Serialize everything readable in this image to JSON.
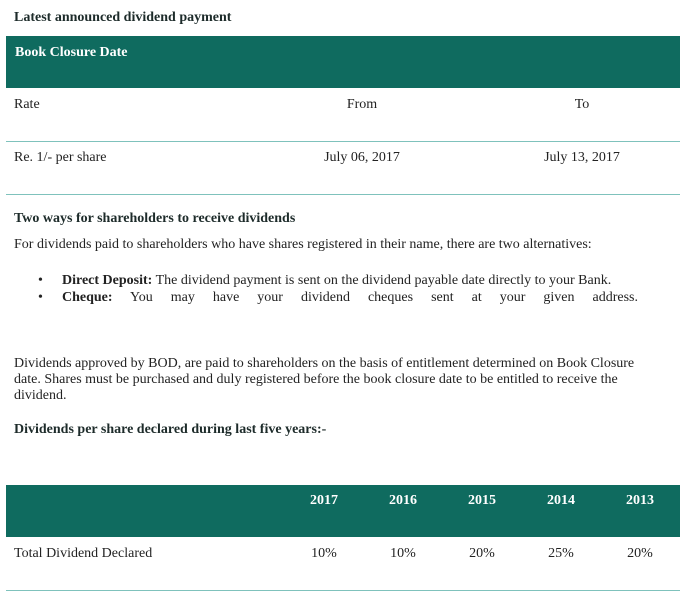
{
  "latest": {
    "title": "Latest announced dividend payment"
  },
  "book_closure": {
    "header": "Book Closure Date",
    "columns": [
      "Rate",
      "From",
      "To"
    ],
    "row": [
      "Re. 1/- per share",
      "July 06, 2017",
      "July 13, 2017"
    ]
  },
  "ways": {
    "heading": "Two ways for shareholders to receive dividends",
    "intro": "For dividends paid to shareholders who have shares registered in their name, there are two alternatives:",
    "items": [
      {
        "label": "Direct Deposit:",
        "text": " The dividend payment is sent on the dividend payable date directly to your Bank."
      },
      {
        "label": "Cheque:",
        "text": " You may have your dividend cheques sent at your given address."
      }
    ],
    "bullet": "•"
  },
  "note": "Dividends approved by BOD, are paid to shareholders on the basis of entitlement determined on Book Closure date. Shares must be purchased and duly registered before the book closure date to be entitled to receive the dividend.",
  "five_years": {
    "heading": "Dividends per share declared during last five years:-",
    "years": [
      "2017",
      "2016",
      "2015",
      "2014",
      "2013"
    ],
    "row_label": "Total Dividend Declared",
    "values": [
      "10%",
      "10%",
      "20%",
      "25%",
      "20%"
    ]
  },
  "colors": {
    "header_bg": "#0f6b5f",
    "rule": "#7fc2bc"
  }
}
